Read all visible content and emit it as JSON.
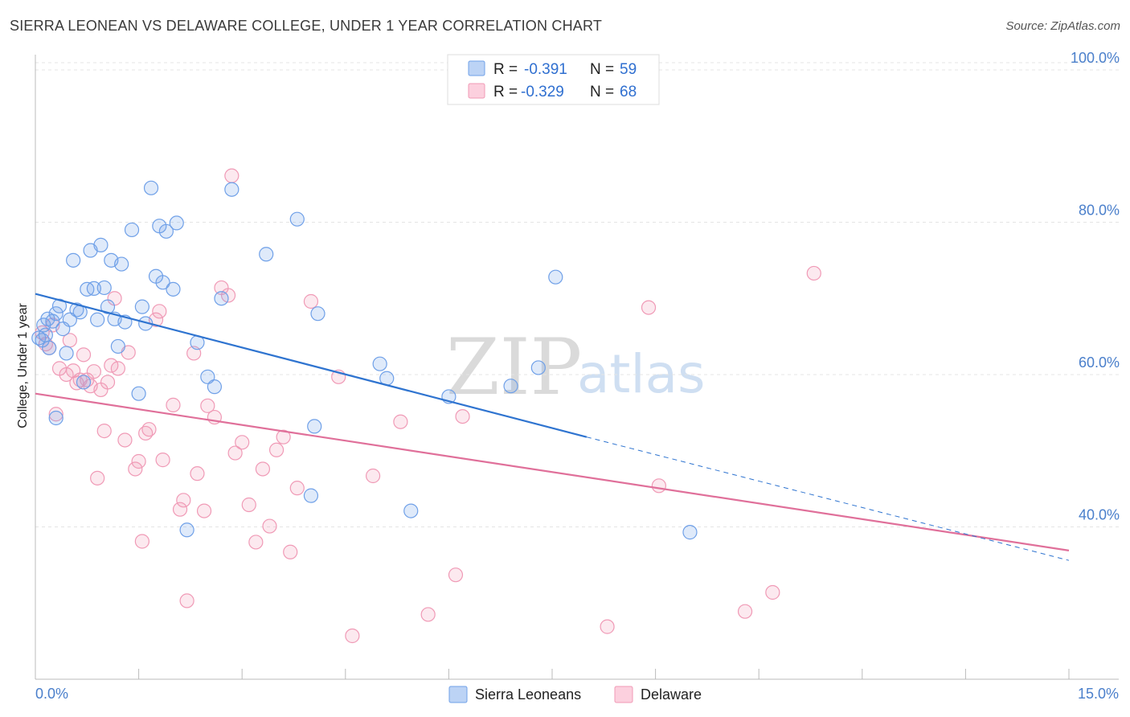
{
  "title": "SIERRA LEONEAN VS DELAWARE COLLEGE, UNDER 1 YEAR CORRELATION CHART",
  "source": "Source: ZipAtlas.com",
  "watermark": {
    "zip": "ZIP",
    "atlas": "atlas"
  },
  "legend": {
    "r_label": "R =",
    "n_label": "N =",
    "series": [
      {
        "name": "Sierra Leoneans",
        "r": "-0.391",
        "n": "59"
      },
      {
        "name": "Delaware",
        "r": "-0.329",
        "n": "68"
      }
    ]
  },
  "chart_data": {
    "type": "scatter",
    "title": "SIERRA LEONEAN VS DELAWARE COLLEGE, UNDER 1 YEAR CORRELATION CHART",
    "xlabel": "",
    "ylabel": "College, Under 1 year",
    "xlim": [
      0,
      15
    ],
    "ylim": [
      20,
      102
    ],
    "x_tick_labels": [
      "0.0%",
      "15.0%"
    ],
    "y_ticks": [
      40,
      60,
      80,
      100
    ],
    "y_tick_labels": [
      "40.0%",
      "60.0%",
      "80.0%",
      "100.0%"
    ],
    "colors": {
      "sierra": "#6fa0e8",
      "delaware": "#f09ab6",
      "sierra_line": "#2f74d0",
      "delaware_line": "#e0709a"
    },
    "series": [
      {
        "name": "Sierra Leoneans",
        "points": [
          [
            0.1,
            64.5
          ],
          [
            0.12,
            66.5
          ],
          [
            0.15,
            65.2
          ],
          [
            0.2,
            63.5
          ],
          [
            0.25,
            67
          ],
          [
            0.3,
            68
          ],
          [
            0.35,
            69
          ],
          [
            0.4,
            66
          ],
          [
            0.45,
            62.8
          ],
          [
            0.5,
            67.2
          ],
          [
            0.55,
            75
          ],
          [
            0.6,
            68.5
          ],
          [
            0.65,
            68.2
          ],
          [
            0.7,
            59
          ],
          [
            0.75,
            71.2
          ],
          [
            0.8,
            76.3
          ],
          [
            0.85,
            71.3
          ],
          [
            0.9,
            67.2
          ],
          [
            0.95,
            77
          ],
          [
            1.0,
            71.4
          ],
          [
            1.05,
            68.9
          ],
          [
            1.1,
            75
          ],
          [
            1.15,
            67.3
          ],
          [
            1.2,
            63.7
          ],
          [
            1.25,
            74.5
          ],
          [
            1.3,
            66.9
          ],
          [
            1.4,
            79
          ],
          [
            1.5,
            57.5
          ],
          [
            1.55,
            68.9
          ],
          [
            1.6,
            66.7
          ],
          [
            1.68,
            84.5
          ],
          [
            1.75,
            72.9
          ],
          [
            1.8,
            79.5
          ],
          [
            1.85,
            72.1
          ],
          [
            1.9,
            78.8
          ],
          [
            2.0,
            71.2
          ],
          [
            2.05,
            79.9
          ],
          [
            2.2,
            39.6
          ],
          [
            2.35,
            64.2
          ],
          [
            2.5,
            59.7
          ],
          [
            2.6,
            58.4
          ],
          [
            2.7,
            70
          ],
          [
            2.85,
            84.3
          ],
          [
            3.35,
            75.8
          ],
          [
            3.8,
            80.4
          ],
          [
            4.0,
            44.1
          ],
          [
            4.05,
            53.2
          ],
          [
            4.1,
            68
          ],
          [
            5.0,
            61.4
          ],
          [
            5.1,
            59.5
          ],
          [
            5.45,
            42.1
          ],
          [
            6.0,
            57.1
          ],
          [
            6.9,
            58.5
          ],
          [
            7.3,
            60.9
          ],
          [
            7.55,
            72.8
          ],
          [
            9.5,
            39.3
          ],
          [
            0.05,
            64.8
          ],
          [
            0.18,
            67.3
          ],
          [
            0.3,
            54.3
          ]
        ]
      },
      {
        "name": "Delaware",
        "points": [
          [
            0.1,
            65.5
          ],
          [
            0.15,
            64
          ],
          [
            0.2,
            63.5
          ],
          [
            0.25,
            66.5
          ],
          [
            0.3,
            54.8
          ],
          [
            0.35,
            60.8
          ],
          [
            0.45,
            60
          ],
          [
            0.5,
            64.5
          ],
          [
            0.55,
            60.5
          ],
          [
            0.6,
            58.9
          ],
          [
            0.65,
            59.3
          ],
          [
            0.7,
            62.6
          ],
          [
            0.75,
            59.3
          ],
          [
            0.8,
            58.5
          ],
          [
            0.85,
            60.4
          ],
          [
            0.9,
            46.4
          ],
          [
            0.95,
            58
          ],
          [
            1.0,
            52.6
          ],
          [
            1.05,
            59
          ],
          [
            1.1,
            61.2
          ],
          [
            1.15,
            70
          ],
          [
            1.2,
            60.8
          ],
          [
            1.3,
            51.4
          ],
          [
            1.35,
            62.9
          ],
          [
            1.45,
            47.6
          ],
          [
            1.5,
            48.6
          ],
          [
            1.55,
            38.1
          ],
          [
            1.6,
            52.3
          ],
          [
            1.65,
            52.8
          ],
          [
            1.75,
            67.2
          ],
          [
            1.8,
            68.3
          ],
          [
            1.85,
            48.8
          ],
          [
            2.0,
            56
          ],
          [
            2.1,
            42.3
          ],
          [
            2.15,
            43.5
          ],
          [
            2.2,
            30.3
          ],
          [
            2.3,
            62.8
          ],
          [
            2.35,
            47
          ],
          [
            2.45,
            42.1
          ],
          [
            2.5,
            55.9
          ],
          [
            2.6,
            54.4
          ],
          [
            2.7,
            71.4
          ],
          [
            2.8,
            70.4
          ],
          [
            2.85,
            86.1
          ],
          [
            2.9,
            49.7
          ],
          [
            3.0,
            51.1
          ],
          [
            3.1,
            42.9
          ],
          [
            3.2,
            38
          ],
          [
            3.3,
            47.6
          ],
          [
            3.4,
            40.1
          ],
          [
            3.5,
            50.1
          ],
          [
            3.6,
            51.8
          ],
          [
            3.7,
            36.7
          ],
          [
            3.8,
            45.1
          ],
          [
            4.0,
            69.6
          ],
          [
            4.4,
            59.7
          ],
          [
            4.6,
            25.7
          ],
          [
            4.9,
            46.7
          ],
          [
            5.3,
            53.8
          ],
          [
            5.7,
            28.5
          ],
          [
            6.1,
            33.7
          ],
          [
            6.2,
            54.5
          ],
          [
            8.3,
            26.9
          ],
          [
            8.9,
            68.8
          ],
          [
            9.05,
            45.4
          ],
          [
            10.3,
            28.9
          ],
          [
            10.7,
            31.4
          ],
          [
            11.3,
            73.3
          ]
        ]
      }
    ],
    "trend_lines": [
      {
        "series": "Sierra Leoneans",
        "from": [
          0,
          70.6
        ],
        "solid_to": [
          8.0,
          51.8
        ],
        "dashed_to": [
          15,
          35.6
        ]
      },
      {
        "series": "Delaware",
        "from": [
          0,
          57.5
        ],
        "to": [
          15,
          36.9
        ]
      }
    ]
  }
}
